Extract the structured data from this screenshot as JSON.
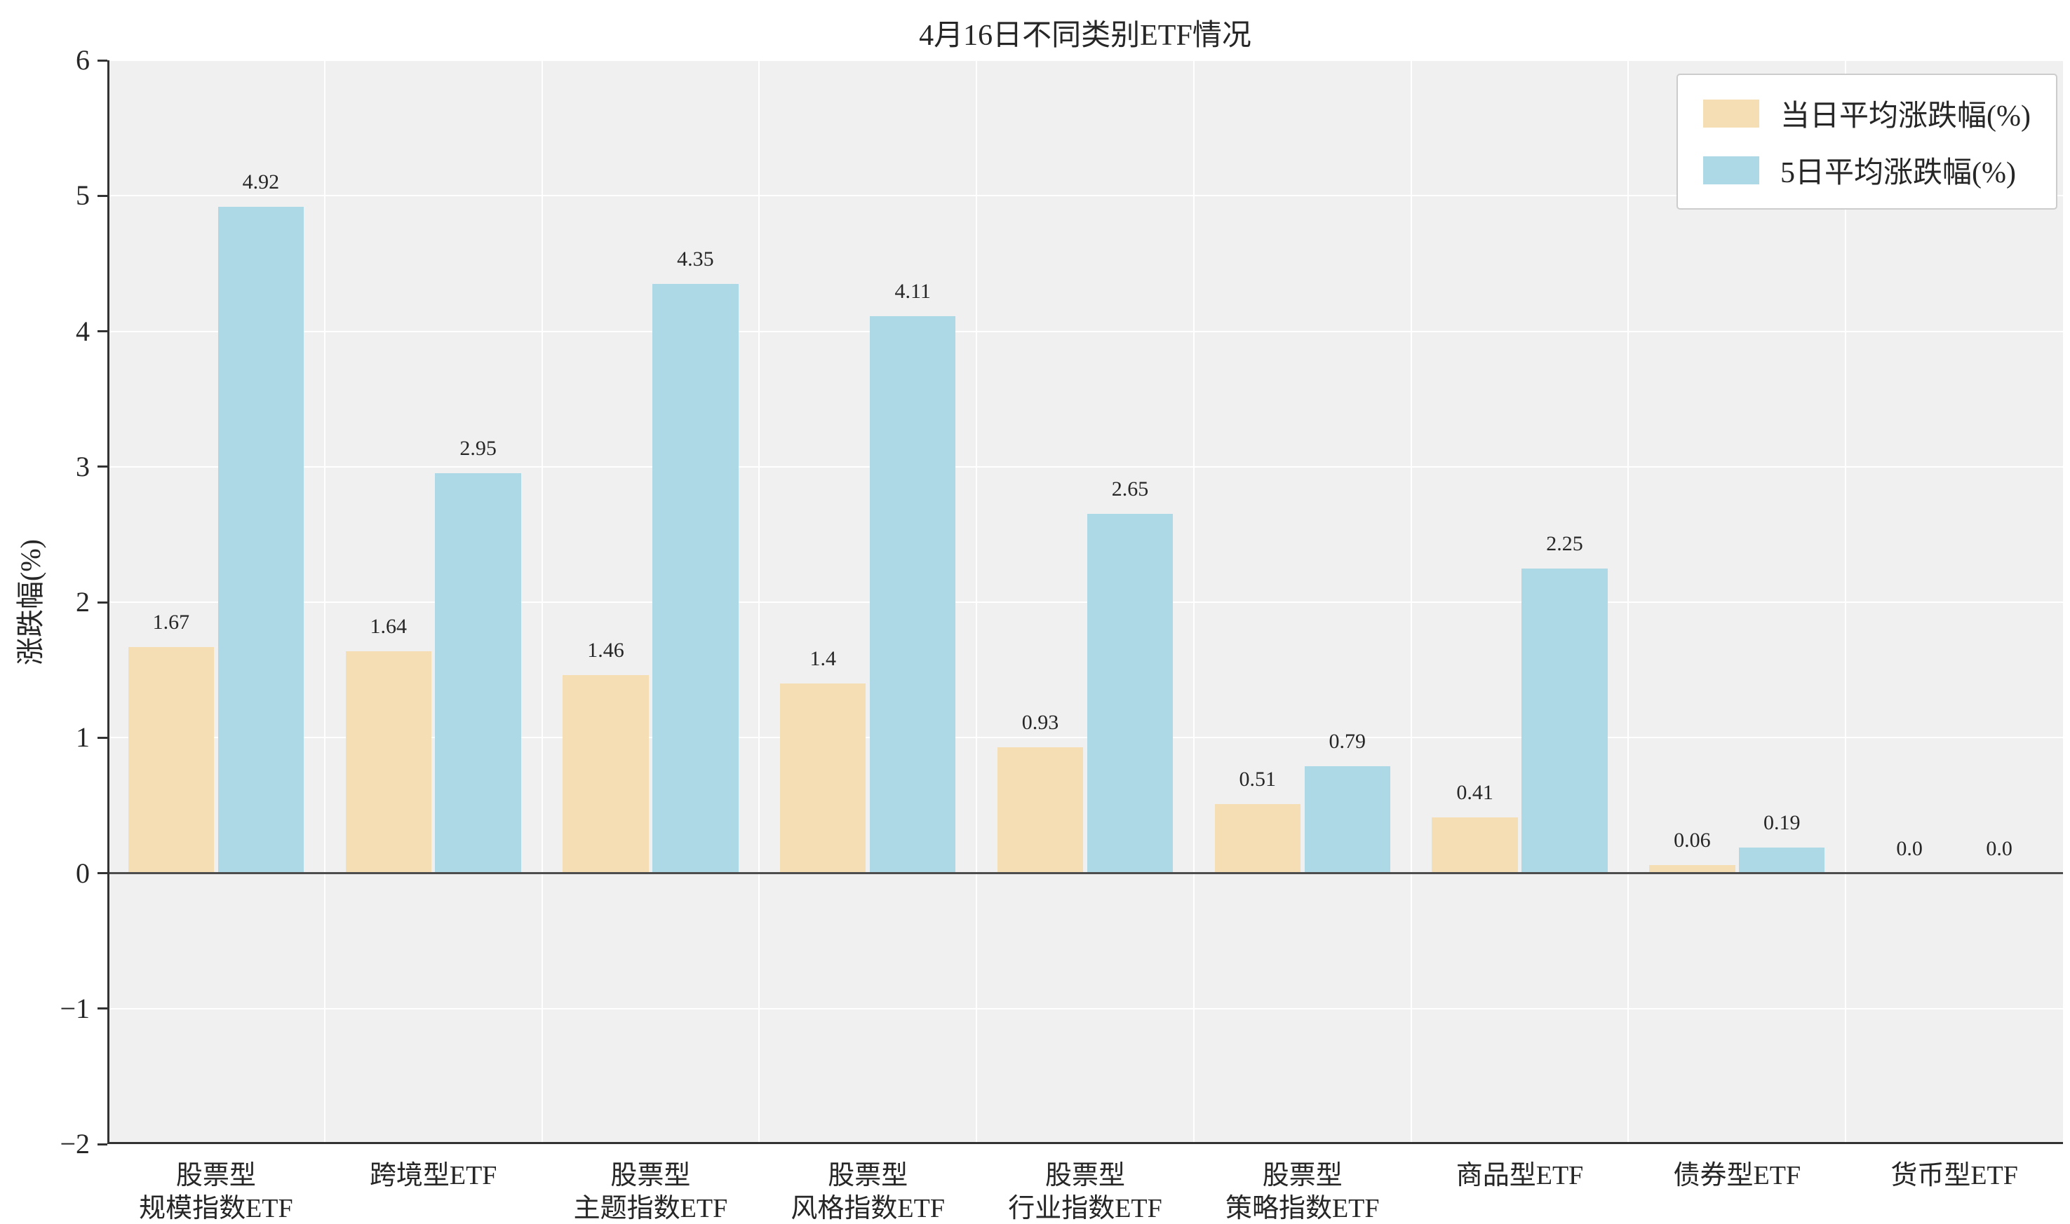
{
  "figure": {
    "background": "#ffffff",
    "plot_background": "#f0f0f0",
    "grid_color": "#ffffff",
    "axis_color": "#333333",
    "zero_line_color": "#4d4d4d",
    "text_color": "#262626"
  },
  "chart_data": {
    "type": "bar",
    "title": "4月16日不同类别ETF情况",
    "xlabel": "",
    "ylabel": "涨跌幅(%)",
    "ylim": [
      -2,
      6
    ],
    "yticks": [
      -2,
      -1,
      0,
      1,
      2,
      3,
      4,
      5,
      6
    ],
    "ytick_labels": [
      "−2",
      "−1",
      "0",
      "1",
      "2",
      "3",
      "4",
      "5",
      "6"
    ],
    "grid": true,
    "legend_position": "upper right",
    "categories": [
      "股票型\n规模指数ETF",
      "跨境型ETF",
      "股票型\n主题指数ETF",
      "股票型\n风格指数ETF",
      "股票型\n行业指数ETF",
      "股票型\n策略指数ETF",
      "商品型ETF",
      "债券型ETF",
      "货币型ETF"
    ],
    "series": [
      {
        "name": "当日平均涨跌幅(%)",
        "color": "#F5DEB3",
        "values": [
          1.67,
          1.64,
          1.46,
          1.4,
          0.93,
          0.51,
          0.41,
          0.06,
          0
        ],
        "labels": [
          "1.67",
          "1.64",
          "1.46",
          "1.4",
          "0.93",
          "0.51",
          "0.41",
          "0.06",
          "0.0"
        ]
      },
      {
        "name": "5日平均涨跌幅(%)",
        "color": "#ADD8E6",
        "values": [
          4.92,
          2.95,
          4.35,
          4.11,
          2.65,
          0.79,
          2.25,
          0.19,
          0
        ],
        "labels": [
          "4.92",
          "2.95",
          "4.35",
          "4.11",
          "2.65",
          "0.79",
          "2.25",
          "0.19",
          "0.0"
        ]
      }
    ]
  }
}
